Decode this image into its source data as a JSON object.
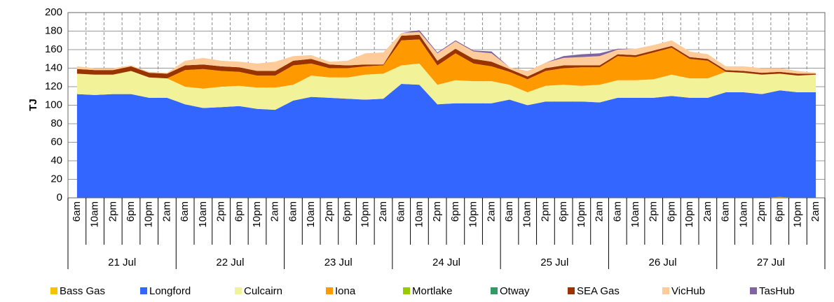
{
  "chart_data": {
    "type": "stacked-area",
    "y_label": "TJ",
    "categories": [
      "6am",
      "10am",
      "2pm",
      "6pm",
      "10pm",
      "2am",
      "6am",
      "10am",
      "2pm",
      "6pm",
      "10pm",
      "2am",
      "6am",
      "10am",
      "2pm",
      "6pm",
      "10pm",
      "2am",
      "6am",
      "10am",
      "2pm",
      "6pm",
      "10pm",
      "2am",
      "6am",
      "10am",
      "2pm",
      "6pm",
      "10pm",
      "2am",
      "6am",
      "10am",
      "2pm",
      "6pm",
      "10pm",
      "2am",
      "6am",
      "10am",
      "2pm",
      "6pm",
      "10pm",
      "2am"
    ],
    "day_labels": [
      "21 Jul",
      "22 Jul",
      "23 Jul",
      "24 Jul",
      "25 Jul",
      "26 Jul",
      "27 Jul"
    ],
    "ylim": [
      0,
      200
    ],
    "yticks": [
      0,
      20,
      40,
      60,
      80,
      100,
      120,
      140,
      160,
      180,
      200
    ],
    "grid": true,
    "series": [
      {
        "name": "Bass Gas",
        "color": "#f5c400",
        "values": [
          0,
          0,
          0,
          0,
          0,
          0,
          0,
          0,
          0,
          0,
          0,
          0,
          0,
          0,
          0,
          0,
          0,
          0,
          0,
          0,
          0,
          0,
          0,
          0,
          0,
          0,
          0,
          0,
          0,
          0,
          0,
          0,
          0,
          0,
          0,
          0,
          0,
          0,
          0,
          1,
          0,
          0
        ]
      },
      {
        "name": "Longford",
        "color": "#3366ff",
        "values": [
          112,
          111,
          112,
          112,
          108,
          108,
          101,
          97,
          98,
          99,
          96,
          95,
          105,
          109,
          108,
          107,
          106,
          107,
          123,
          122,
          101,
          102,
          102,
          102,
          106,
          100,
          104,
          104,
          104,
          103,
          108,
          108,
          108,
          110,
          108,
          108,
          114,
          114,
          112,
          115,
          114,
          114
        ]
      },
      {
        "name": "Culcairn",
        "color": "#f2f299",
        "values": [
          22,
          22,
          21,
          25,
          22,
          21,
          19,
          21,
          22,
          22,
          23,
          24,
          17,
          23,
          22,
          23,
          27,
          27,
          20,
          23,
          21,
          25,
          24,
          24,
          16,
          14,
          17,
          18,
          17,
          19,
          19,
          19,
          20,
          23,
          21,
          21,
          22,
          21,
          21,
          18,
          18,
          19
        ]
      },
      {
        "name": "Iona",
        "color": "#ff9900",
        "values": [
          0,
          0,
          0,
          0,
          0,
          0,
          18,
          21,
          17,
          15,
          13,
          13,
          21,
          13,
          10,
          10,
          9,
          9,
          27,
          26,
          21,
          29,
          19,
          16,
          14,
          14,
          16,
          18,
          20,
          19,
          26,
          25,
          29,
          29,
          21,
          19,
          0,
          0,
          0,
          0,
          0,
          0
        ]
      },
      {
        "name": "Mortlake",
        "color": "#99cc00",
        "values": [
          0,
          0,
          0,
          0,
          0,
          0,
          0,
          0,
          0,
          0,
          0,
          0,
          0,
          0,
          0,
          0,
          0,
          0,
          0,
          0,
          0,
          0,
          0,
          0,
          0,
          0,
          0,
          0,
          0,
          0,
          0,
          0,
          0,
          0,
          0,
          0,
          0,
          0,
          0,
          0,
          0,
          0
        ]
      },
      {
        "name": "Otway",
        "color": "#339966",
        "values": [
          0,
          0,
          0,
          0,
          0,
          0,
          0,
          0,
          0,
          0,
          0,
          0,
          0,
          0,
          0,
          0,
          0,
          0,
          0,
          0,
          0,
          0,
          0,
          0,
          0,
          0,
          0,
          0,
          0,
          0,
          0,
          0,
          0,
          0,
          0,
          0,
          0,
          0,
          0,
          0,
          0,
          0
        ]
      },
      {
        "name": "SEA Gas",
        "color": "#993300",
        "values": [
          5,
          5,
          5,
          5,
          5,
          5,
          5,
          5,
          5,
          5,
          5,
          5,
          5,
          5,
          4,
          3,
          2,
          1,
          5,
          5,
          5,
          5,
          5,
          5,
          3,
          3,
          3,
          3,
          2,
          2,
          2,
          2,
          2,
          2,
          2,
          2,
          2,
          2,
          2,
          2,
          2,
          1
        ]
      },
      {
        "name": "VicHub",
        "color": "#ffcc99",
        "values": [
          3,
          2,
          2,
          1,
          1,
          1,
          5,
          7,
          6,
          6,
          8,
          10,
          5,
          4,
          3,
          5,
          12,
          13,
          3,
          3,
          8,
          8,
          8,
          9,
          2,
          6,
          6,
          8,
          9,
          10,
          5,
          7,
          6,
          6,
          6,
          5,
          4,
          5,
          5,
          4,
          3,
          1
        ]
      },
      {
        "name": "TasHub",
        "color": "#8064a2",
        "values": [
          0,
          0,
          0,
          0,
          0,
          0,
          0,
          0,
          0,
          0,
          0,
          0,
          0,
          0,
          0,
          0,
          0,
          0,
          0,
          2,
          1,
          1,
          1,
          2,
          0,
          0,
          0,
          2,
          3,
          3,
          1,
          0,
          0,
          0,
          0,
          0,
          0,
          0,
          0,
          0,
          0,
          0
        ]
      }
    ]
  }
}
